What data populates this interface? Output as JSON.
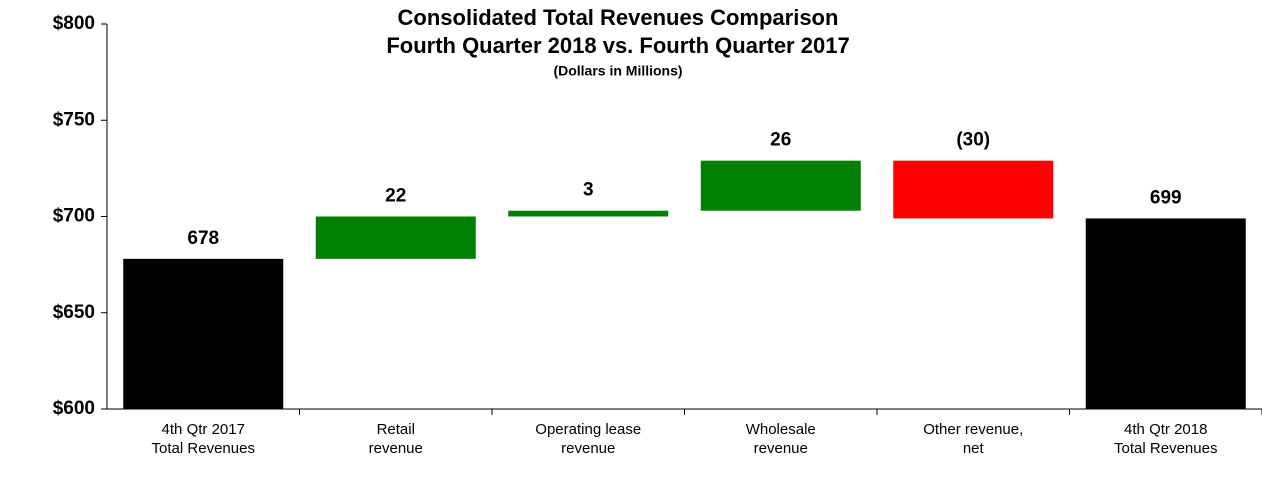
{
  "chart_data": {
    "type": "waterfall",
    "title": "Consolidated Total Revenues Comparison",
    "subtitle": "Fourth Quarter 2018 vs. Fourth Quarter 2017",
    "note": "(Dollars in Millions)",
    "categories": [
      "4th Qtr 2017\nTotal Revenues",
      "Retail\nrevenue",
      "Operating lease\nrevenue",
      "Wholesale\nrevenue",
      "Other revenue,\nnet",
      "4th Qtr 2018\nTotal Revenues"
    ],
    "values": [
      678,
      22,
      3,
      26,
      -30,
      699
    ],
    "value_labels": [
      "678",
      "22",
      "3",
      "26",
      "(30)",
      "699"
    ],
    "is_total": [
      true,
      false,
      false,
      false,
      false,
      true
    ],
    "colors": [
      "#000000",
      "#008000",
      "#008000",
      "#008000",
      "#ff0000",
      "#000000"
    ],
    "ylim": [
      600,
      800
    ],
    "yticks": [
      {
        "value": 600,
        "label": "$600"
      },
      {
        "value": 650,
        "label": "$650"
      },
      {
        "value": 700,
        "label": "$700"
      },
      {
        "value": 750,
        "label": "$750"
      },
      {
        "value": 800,
        "label": "$800"
      }
    ],
    "grid": false
  }
}
